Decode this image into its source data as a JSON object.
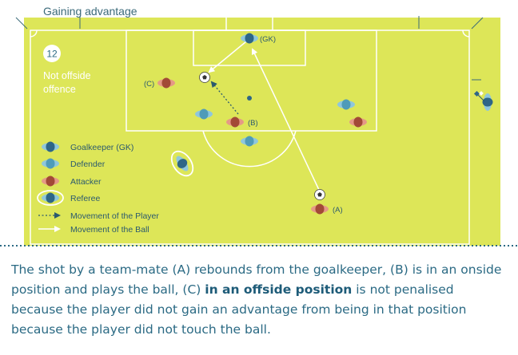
{
  "title": "Gaining advantage",
  "badge_number": "12",
  "badge_text": [
    "Not offside",
    "offence"
  ],
  "player_labels": {
    "gk": "(GK)",
    "a": "(A)",
    "b": "(B)",
    "c": "(C)"
  },
  "legend": [
    {
      "icon": "goalkeeper-icon",
      "label": "Goalkeeper (GK)"
    },
    {
      "icon": "defender-icon",
      "label": "Defender"
    },
    {
      "icon": "attacker-icon",
      "label": "Attacker"
    },
    {
      "icon": "referee-icon",
      "label": "Referee"
    },
    {
      "icon": "dotted-arrow-icon",
      "label": "Movement of the Player"
    },
    {
      "icon": "solid-arrow-icon",
      "label": "Movement of the Ball"
    }
  ],
  "caption": {
    "part1": "The shot by a team-mate (A) rebounds from the goalkeeper, (B) is in an onside position and plays the ball, (C) ",
    "bold": "in an offside position",
    "part2": " is not penalised because the player did not gain an advantage from being in that position because the player did not touch the ball."
  },
  "colors": {
    "pitch": "#dde658",
    "lines": "#ffffff",
    "text": "#2b6a84",
    "title": "#3b6a7a",
    "goalkeeper": "#2e6687",
    "defender": "#4f9bb8",
    "attacker": "#b04e3a",
    "badge": "#ffffff"
  }
}
